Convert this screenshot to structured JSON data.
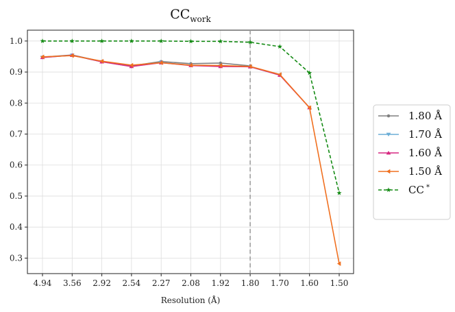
{
  "chart_data": {
    "type": "line",
    "title": "CC",
    "title_subscript": "work",
    "xlabel": "Resolution (Å)",
    "ylabel": "",
    "categories": [
      "4.94",
      "3.56",
      "2.92",
      "2.54",
      "2.27",
      "2.08",
      "1.92",
      "1.80",
      "1.70",
      "1.60",
      "1.50"
    ],
    "ylim": [
      0.25,
      1.035
    ],
    "yticks": [
      "0.3",
      "0.4",
      "0.5",
      "0.6",
      "0.7",
      "0.8",
      "0.9",
      "1.0"
    ],
    "grid": true,
    "legend_position": "right",
    "vertical_reference_line": {
      "category": "1.80",
      "color": "#999999",
      "style": "dashed"
    },
    "series": [
      {
        "name": "1.80 Å",
        "color": "#7f7f7f",
        "marker": "circle",
        "style": "solid",
        "values": [
          0.948,
          0.955,
          0.934,
          0.92,
          0.934,
          0.927,
          0.929,
          0.92,
          null,
          null,
          null
        ]
      },
      {
        "name": "1.70 Å",
        "color": "#6baed6",
        "marker": "triangle-down",
        "style": "solid",
        "values": [
          0.947,
          0.954,
          0.933,
          0.918,
          0.931,
          0.922,
          0.919,
          0.917,
          0.89,
          null,
          null
        ]
      },
      {
        "name": "1.60 Å",
        "color": "#d62780",
        "marker": "triangle-up",
        "style": "solid",
        "values": [
          0.947,
          0.954,
          0.933,
          0.918,
          0.93,
          0.921,
          0.918,
          0.917,
          0.89,
          0.785,
          null
        ]
      },
      {
        "name": "1.50 Å",
        "color": "#f07020",
        "marker": "triangle-left",
        "style": "solid",
        "values": [
          0.949,
          0.953,
          0.935,
          0.922,
          0.93,
          0.922,
          0.921,
          0.918,
          0.892,
          0.785,
          0.282
        ]
      },
      {
        "name": "CC",
        "name_superscript": "*",
        "color": "#138a13",
        "marker": "star",
        "style": "dashed",
        "values": [
          1.0,
          1.0,
          1.0,
          1.0,
          1.0,
          0.999,
          0.999,
          0.996,
          0.982,
          0.897,
          0.51
        ]
      }
    ]
  }
}
